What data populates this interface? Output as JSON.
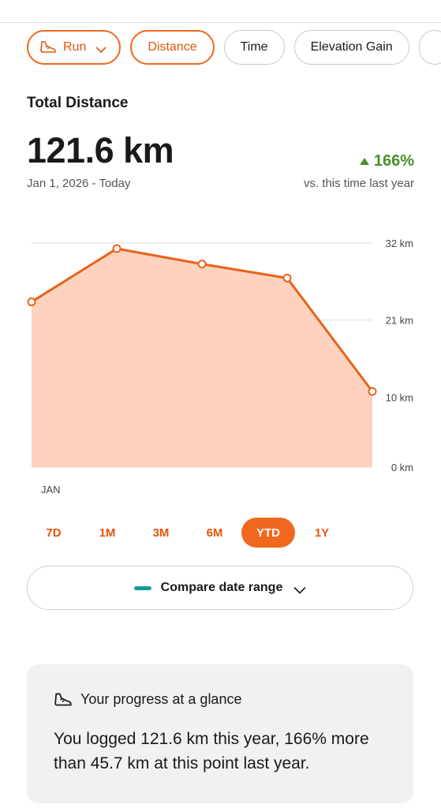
{
  "filters": {
    "sport": "Run",
    "metrics": [
      "Distance",
      "Time",
      "Elevation Gain"
    ],
    "active_metric": "Distance"
  },
  "summary": {
    "label": "Total Distance",
    "value": "121.6 km",
    "date_range": "Jan 1, 2026 - Today",
    "change": "166%",
    "change_note": "vs. this time last year"
  },
  "chart_data": {
    "type": "area",
    "x_label": "JAN",
    "y_ticks": [
      "32 km",
      "21 km",
      "10 km",
      "0 km"
    ],
    "y_tick_values": [
      32,
      21,
      10,
      0
    ],
    "ylim": [
      0,
      32
    ],
    "values": [
      23.6,
      31.2,
      29.0,
      27.0,
      10.8
    ],
    "grid": true,
    "line_color": "#e8621a",
    "fill_color": "#fdd3bf"
  },
  "range_tabs": [
    "7D",
    "1M",
    "3M",
    "6M",
    "YTD",
    "1Y"
  ],
  "selected_range": "YTD",
  "compare": {
    "label": "Compare date range"
  },
  "progress_card": {
    "title": "Your progress at a glance",
    "body": "You logged 121.6 km this year, 166% more than 45.7 km at this point last year."
  },
  "colors": {
    "accent": "#f0681e",
    "positive": "#4a8f2a",
    "compare_dash": "#1a9a9a"
  }
}
